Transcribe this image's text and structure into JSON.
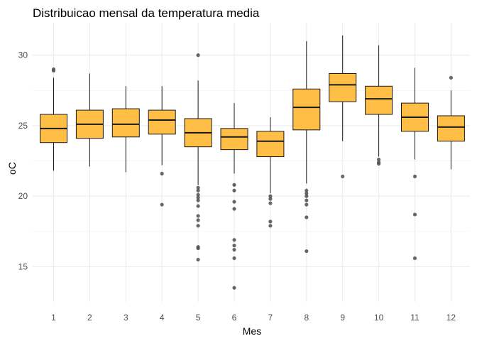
{
  "chart_data": {
    "type": "boxplot",
    "title": "Distribuicao mensal da temperatura media",
    "xlabel": "Mes",
    "ylabel": "oC",
    "categories": [
      "1",
      "2",
      "3",
      "4",
      "5",
      "6",
      "7",
      "8",
      "9",
      "10",
      "11",
      "12"
    ],
    "ylim": [
      12.5,
      32.3
    ],
    "yticks": [
      15,
      20,
      25,
      30
    ],
    "grid": true,
    "fill_color": "#FFB833",
    "box_stroke": "#1a1a1a",
    "outlier_color": "#4d4d4d",
    "boxes": [
      {
        "category": "1",
        "whisker_low": 21.8,
        "q1": 23.8,
        "median": 24.8,
        "q3": 25.8,
        "whisker_high": 28.4,
        "outliers": [
          28.9,
          29.0
        ]
      },
      {
        "category": "2",
        "whisker_low": 22.1,
        "q1": 24.1,
        "median": 25.1,
        "q3": 26.1,
        "whisker_high": 28.7,
        "outliers": []
      },
      {
        "category": "3",
        "whisker_low": 21.7,
        "q1": 24.2,
        "median": 25.1,
        "q3": 26.2,
        "whisker_high": 27.8,
        "outliers": []
      },
      {
        "category": "4",
        "whisker_low": 22.2,
        "q1": 24.4,
        "median": 25.4,
        "q3": 26.1,
        "whisker_high": 27.8,
        "outliers": [
          21.6,
          19.4
        ]
      },
      {
        "category": "5",
        "whisker_low": 20.8,
        "q1": 23.5,
        "median": 24.5,
        "q3": 25.5,
        "whisker_high": 28.2,
        "outliers": [
          30.0,
          20.6,
          20.4,
          20.1,
          19.9,
          19.7,
          19.3,
          18.6,
          18.3,
          17.9,
          16.4,
          16.3,
          15.5
        ]
      },
      {
        "category": "6",
        "whisker_low": 21.6,
        "q1": 23.3,
        "median": 24.2,
        "q3": 24.8,
        "whisker_high": 26.6,
        "outliers": [
          20.8,
          20.4,
          19.6,
          19.1,
          16.9,
          16.5,
          16.2,
          15.6,
          13.5
        ]
      },
      {
        "category": "7",
        "whisker_low": 20.2,
        "q1": 22.8,
        "median": 23.9,
        "q3": 24.6,
        "whisker_high": 25.6,
        "outliers": [
          20.0,
          19.8,
          19.5,
          18.2,
          17.9
        ]
      },
      {
        "category": "8",
        "whisker_low": 20.9,
        "q1": 24.7,
        "median": 26.3,
        "q3": 27.6,
        "whisker_high": 31.0,
        "outliers": [
          20.4,
          20.2,
          20.0,
          19.7,
          19.4,
          18.5,
          16.1
        ]
      },
      {
        "category": "9",
        "whisker_low": 23.9,
        "q1": 26.7,
        "median": 27.9,
        "q3": 28.7,
        "whisker_high": 31.4,
        "outliers": [
          21.4
        ]
      },
      {
        "category": "10",
        "whisker_low": 22.8,
        "q1": 25.8,
        "median": 26.9,
        "q3": 27.8,
        "whisker_high": 30.7,
        "outliers": [
          22.6,
          22.4,
          22.3
        ]
      },
      {
        "category": "11",
        "whisker_low": 22.6,
        "q1": 24.6,
        "median": 25.6,
        "q3": 26.6,
        "whisker_high": 29.1,
        "outliers": [
          21.4,
          18.7,
          15.6
        ]
      },
      {
        "category": "12",
        "whisker_low": 21.9,
        "q1": 23.9,
        "median": 24.9,
        "q3": 25.7,
        "whisker_high": 27.5,
        "outliers": [
          28.4
        ]
      }
    ]
  }
}
